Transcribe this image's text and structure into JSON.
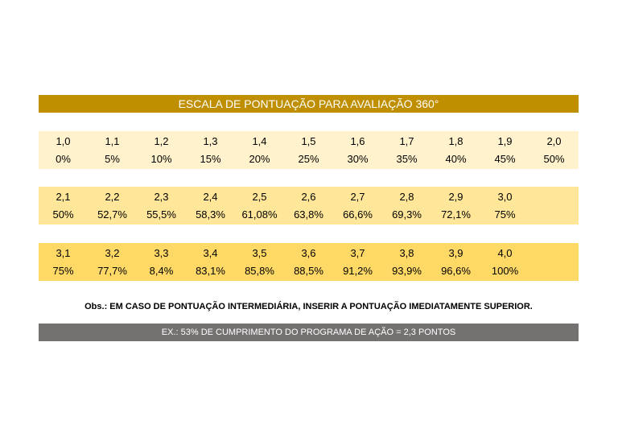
{
  "header": {
    "title": "ESCALA DE PONTUAÇÃO PARA AVALIAÇÃO 360°"
  },
  "table": {
    "groups": [
      {
        "scores": [
          "1,0",
          "1,1",
          "1,2",
          "1,3",
          "1,4",
          "1,5",
          "1,6",
          "1,7",
          "1,8",
          "1,9",
          "2,0"
        ],
        "percents": [
          "0%",
          "5%",
          "10%",
          "15%",
          "20%",
          "25%",
          "30%",
          "35%",
          "40%",
          "45%",
          "50%"
        ]
      },
      {
        "scores": [
          "2,1",
          "2,2",
          "2,3",
          "2,4",
          "2,5",
          "2,6",
          "2,7",
          "2,8",
          "2,9",
          "3,0"
        ],
        "percents": [
          "50%",
          "52,7%",
          "55,5%",
          "58,3%",
          "61,08%",
          "63,8%",
          "66,6%",
          "69,3%",
          "72,1%",
          "75%"
        ]
      },
      {
        "scores": [
          "3,1",
          "3,2",
          "3,3",
          "3,4",
          "3,5",
          "3,6",
          "3,7",
          "3,8",
          "3,9",
          "4,0"
        ],
        "percents": [
          "75%",
          "77,7%",
          "8,4%",
          "83,1%",
          "85,8%",
          "88,5%",
          "91,2%",
          "93,9%",
          "96,6%",
          "100%"
        ]
      }
    ]
  },
  "note": "Obs.: EM CASO DE PONTUAÇÃO INTERMEDIÁRIA, INSERIR A PONTUAÇÃO IMEDIATAMENTE SUPERIOR.",
  "example": "EX.: 53% DE CUMPRIMENTO DO PROGRAMA DE AÇÃO = 2,3 PONTOS"
}
